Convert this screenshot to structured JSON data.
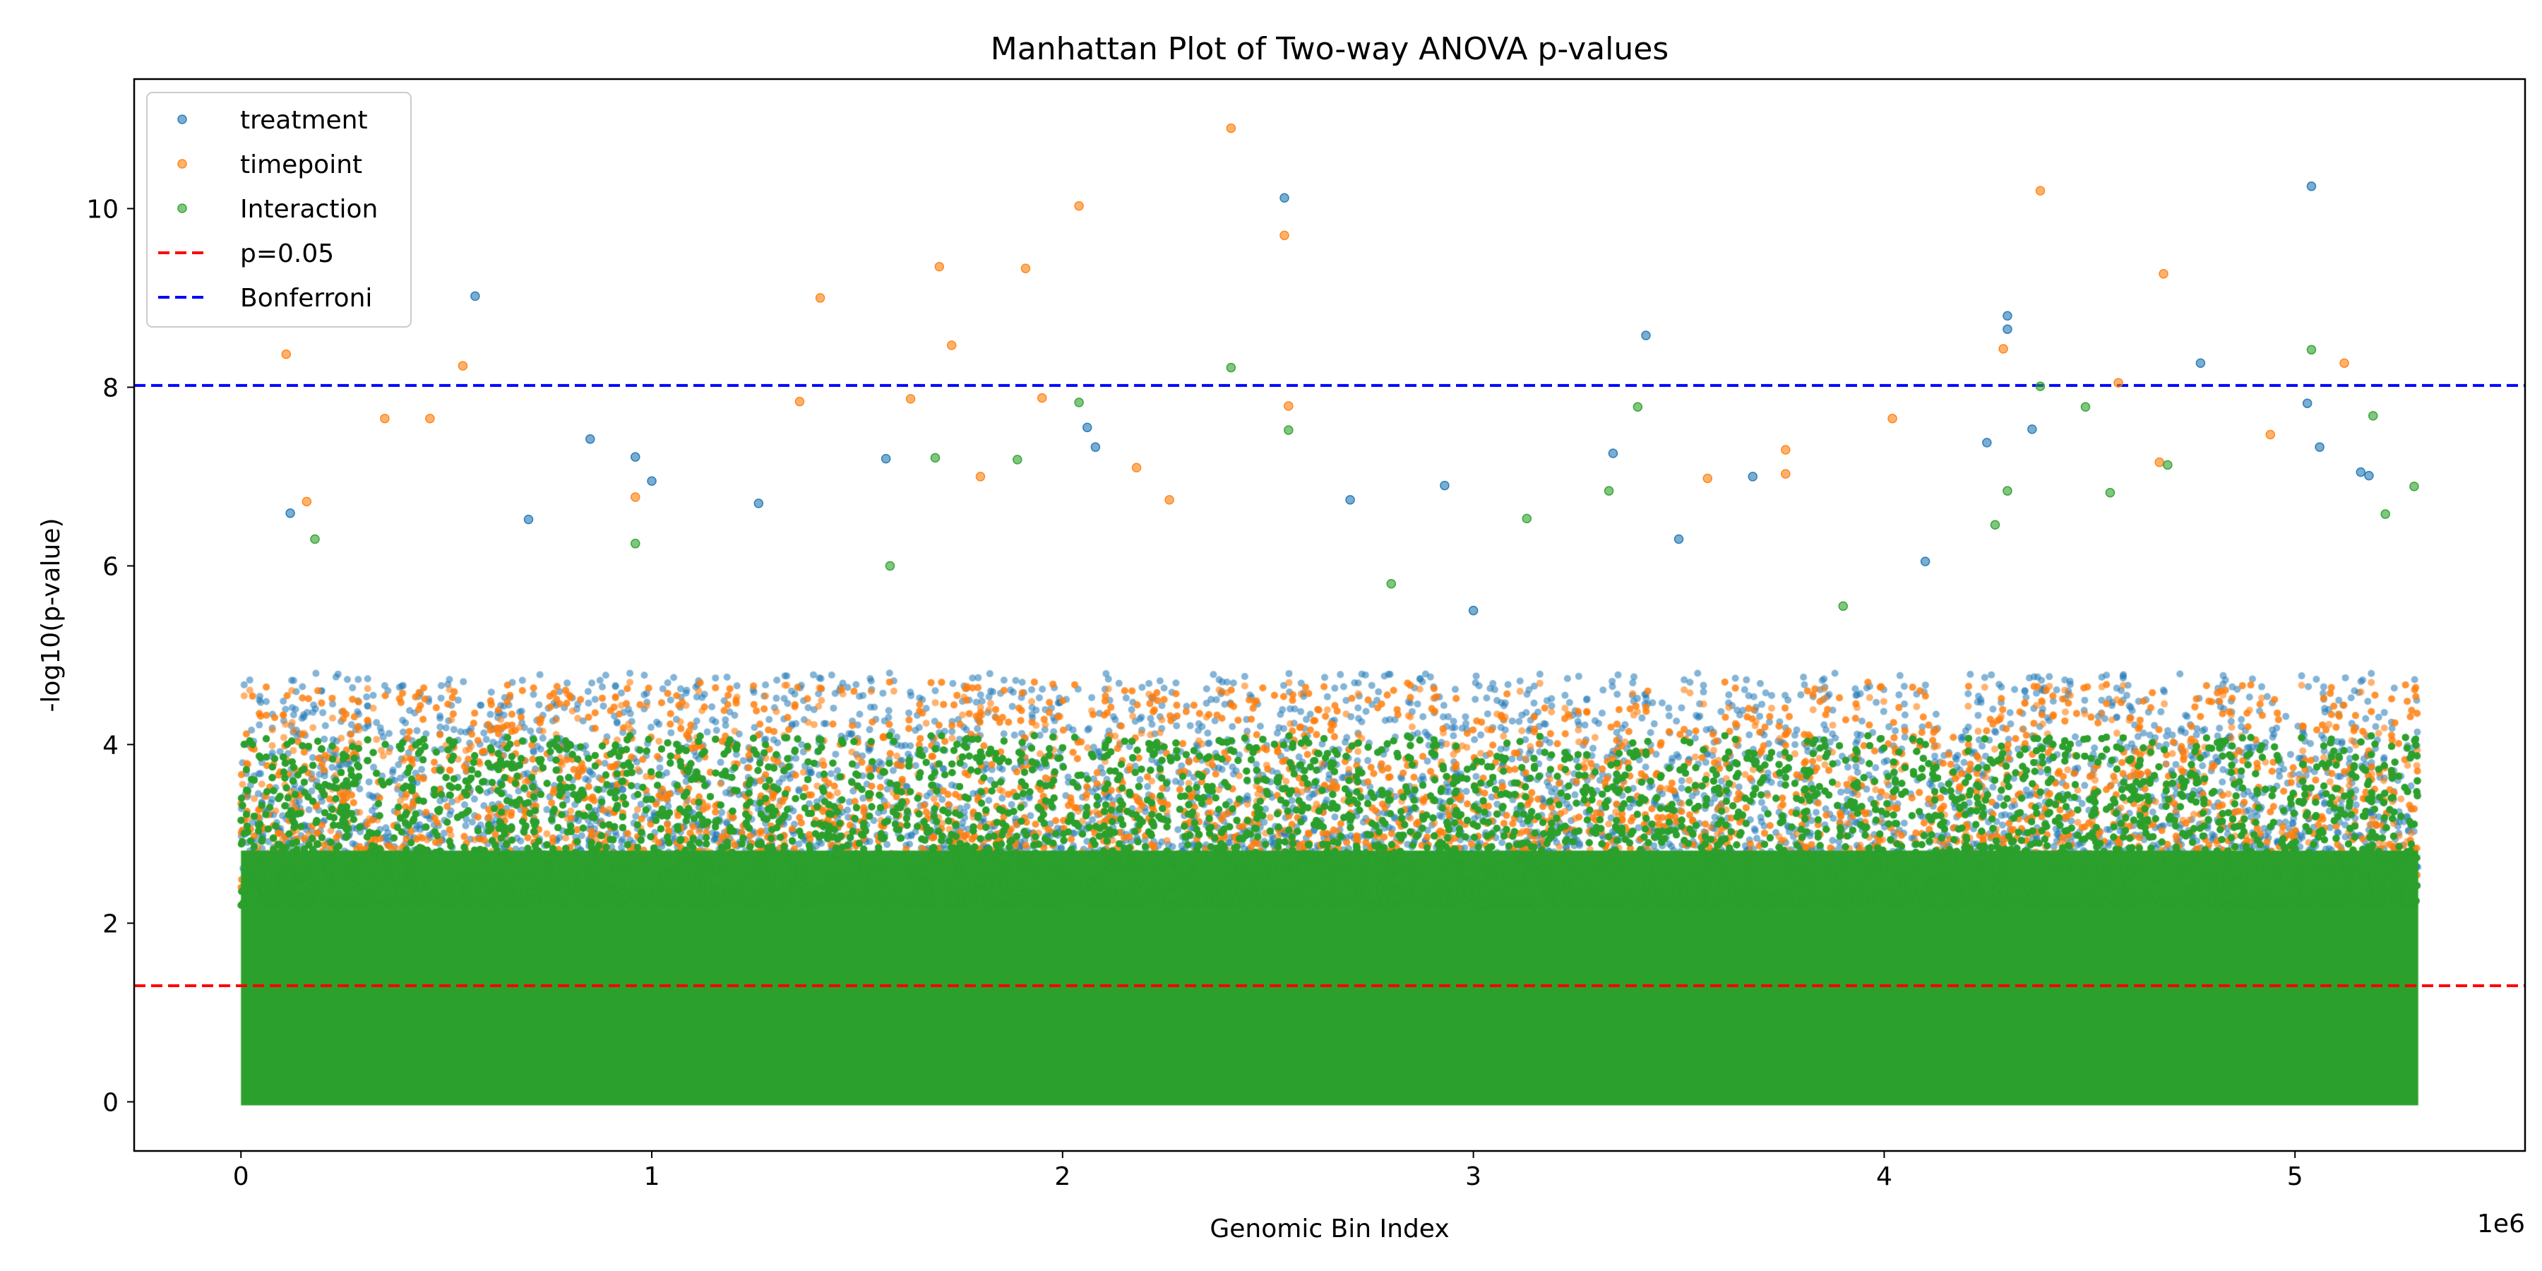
{
  "chart_data": {
    "type": "scatter",
    "title": "Manhattan Plot of Two-way ANOVA p-values",
    "xlabel": "Genomic Bin Index",
    "ylabel": "-log10(p-value)",
    "x_offset_label": "1e6",
    "xlim": [
      -260000,
      5560000
    ],
    "ylim": [
      -0.55,
      11.45
    ],
    "x_ticks": [
      0,
      1000000,
      2000000,
      3000000,
      4000000,
      5000000
    ],
    "x_tick_labels": [
      "0",
      "1",
      "2",
      "3",
      "4",
      "5"
    ],
    "y_ticks": [
      0,
      2,
      4,
      6,
      8,
      10
    ],
    "y_tick_labels": [
      "0",
      "2",
      "4",
      "6",
      "8",
      "10"
    ],
    "x_range": [
      0,
      5300000
    ],
    "grid": false,
    "legend_position": "top-left",
    "series": [
      {
        "name": "treatment",
        "color": "#1f77b4",
        "marker": "circle",
        "points": [
          [
            570000,
            9.02
          ],
          [
            2540000,
            10.12
          ],
          [
            5040000,
            10.25
          ],
          [
            4300000,
            8.8
          ],
          [
            4300000,
            8.65
          ],
          [
            3420000,
            8.58
          ],
          [
            4770000,
            8.27
          ],
          [
            850000,
            7.42
          ],
          [
            960000,
            7.22
          ],
          [
            2060000,
            7.55
          ],
          [
            2080000,
            7.33
          ],
          [
            4250000,
            7.38
          ],
          [
            4360000,
            7.53
          ],
          [
            5030000,
            7.82
          ],
          [
            5060000,
            7.33
          ],
          [
            3340000,
            7.26
          ],
          [
            1570000,
            7.2
          ],
          [
            1000000,
            6.95
          ],
          [
            5160000,
            7.05
          ],
          [
            5180000,
            7.01
          ],
          [
            1260000,
            6.7
          ],
          [
            2930000,
            6.9
          ],
          [
            3680000,
            7.0
          ],
          [
            700000,
            6.52
          ],
          [
            2700000,
            6.74
          ],
          [
            120000,
            6.59
          ],
          [
            4100000,
            6.05
          ],
          [
            3000000,
            5.5
          ],
          [
            3500000,
            6.3
          ]
        ]
      },
      {
        "name": "timepoint",
        "color": "#ff7f0e",
        "marker": "circle",
        "points": [
          [
            2410000,
            10.9
          ],
          [
            2040000,
            10.03
          ],
          [
            4380000,
            10.2
          ],
          [
            1700000,
            9.35
          ],
          [
            1910000,
            9.33
          ],
          [
            4680000,
            9.27
          ],
          [
            1410000,
            9.0
          ],
          [
            2540000,
            9.7
          ],
          [
            1730000,
            8.47
          ],
          [
            4290000,
            8.43
          ],
          [
            5120000,
            8.27
          ],
          [
            110000,
            8.37
          ],
          [
            540000,
            8.24
          ],
          [
            4570000,
            8.05
          ],
          [
            1360000,
            7.84
          ],
          [
            1630000,
            7.87
          ],
          [
            1950000,
            7.88
          ],
          [
            2550000,
            7.79
          ],
          [
            350000,
            7.65
          ],
          [
            460000,
            7.65
          ],
          [
            4020000,
            7.65
          ],
          [
            3760000,
            7.3
          ],
          [
            4940000,
            7.47
          ],
          [
            3760000,
            7.03
          ],
          [
            2180000,
            7.1
          ],
          [
            4670000,
            7.16
          ],
          [
            1800000,
            7.0
          ],
          [
            3570000,
            6.98
          ],
          [
            160000,
            6.72
          ],
          [
            2260000,
            6.74
          ],
          [
            960000,
            6.77
          ]
        ]
      },
      {
        "name": "Interaction",
        "color": "#2ca02c",
        "marker": "circle",
        "points": [
          [
            2410000,
            8.22
          ],
          [
            5040000,
            8.42
          ],
          [
            4380000,
            8.01
          ],
          [
            2040000,
            7.83
          ],
          [
            3400000,
            7.78
          ],
          [
            4490000,
            7.78
          ],
          [
            5190000,
            7.68
          ],
          [
            2550000,
            7.52
          ],
          [
            1690000,
            7.21
          ],
          [
            1890000,
            7.19
          ],
          [
            4690000,
            7.13
          ],
          [
            4300000,
            6.84
          ],
          [
            5290000,
            6.89
          ],
          [
            3330000,
            6.84
          ],
          [
            4550000,
            6.82
          ],
          [
            3130000,
            6.53
          ],
          [
            5220000,
            6.58
          ],
          [
            4270000,
            6.46
          ],
          [
            1580000,
            6.0
          ],
          [
            180000,
            6.3
          ],
          [
            960000,
            6.25
          ],
          [
            2800000,
            5.8
          ],
          [
            3900000,
            5.55
          ]
        ]
      },
      {
        "name": "p=0.05",
        "type": "hline",
        "y": 1.3,
        "color": "#ff0000",
        "linestyle": "dashed"
      },
      {
        "name": "Bonferroni",
        "type": "hline",
        "y": 8.02,
        "color": "#0000ff",
        "linestyle": "dashed"
      }
    ]
  }
}
